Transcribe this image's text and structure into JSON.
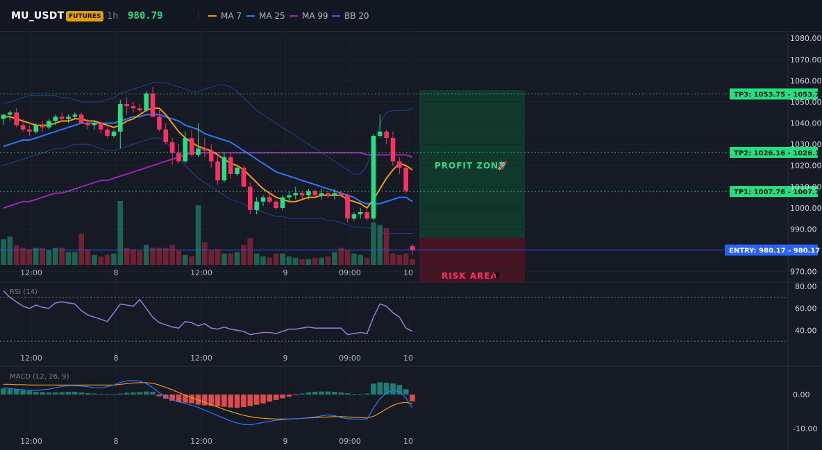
{
  "header": {
    "symbol": "MU_USDT",
    "badge": "FUTURES",
    "interval": "1h",
    "price": "980.79",
    "indicators": [
      {
        "label": "MA 7",
        "color": "#f39c12"
      },
      {
        "label": "MA 25",
        "color": "#2979ff"
      },
      {
        "label": "MA 99",
        "color": "#9c27b0"
      },
      {
        "label": "BB 20",
        "color": "#2962ff"
      }
    ]
  },
  "colors": {
    "up": "#26de81",
    "down": "#ff2e63",
    "background": "#161a25",
    "profit_zone": "#0f3d2e",
    "risk_zone": "#4a1524"
  },
  "price_axis": [
    "1080.00",
    "1070.00",
    "1060.00",
    "1050.00",
    "1040.00",
    "1030.00",
    "1020.00",
    "1010.00",
    "1000.00",
    "990.00",
    "970.00"
  ],
  "time_axis": [
    "12:00",
    "8",
    "12:00",
    "9",
    "09:00",
    "10"
  ],
  "levels": [
    {
      "label": "TP3: 1053.75",
      "value": "1053.75",
      "kind": "tp"
    },
    {
      "label": "TP2: 1026.16",
      "value": "1026.16",
      "kind": "tp"
    },
    {
      "label": "TP1: 1007.76",
      "value": "1007.76",
      "kind": "tp"
    },
    {
      "label": "ENTRY: 980.17",
      "value": "980.17",
      "kind": "entry"
    }
  ],
  "zones": {
    "profit": {
      "label": "PROFIT ZONE",
      "icon": "rocket-icon"
    },
    "risk": {
      "label": "RISK AREA",
      "icon": "shield-icon"
    }
  },
  "rsi": {
    "title": "RSI (14)",
    "axis": [
      "80.00",
      "60.00",
      "40.00"
    ],
    "upper": 70,
    "lower": 30,
    "ymin": 25,
    "ymax": 82
  },
  "macd": {
    "title": "MACD (12, 26, 9)",
    "axis": [
      "0.00",
      "-10.00"
    ]
  },
  "chart_data": {
    "type": "candlestick",
    "ylim": [
      965,
      1083
    ],
    "candles": [
      [
        1042,
        1044,
        1039,
        1044
      ],
      [
        1044,
        1046,
        1041,
        1045
      ],
      [
        1045,
        1047,
        1038,
        1039
      ],
      [
        1039,
        1042,
        1036,
        1037
      ],
      [
        1037,
        1039,
        1034,
        1036
      ],
      [
        1036,
        1040,
        1035,
        1039
      ],
      [
        1039,
        1041,
        1036,
        1038
      ],
      [
        1038,
        1042,
        1037,
        1041
      ],
      [
        1041,
        1044,
        1039,
        1043
      ],
      [
        1043,
        1045,
        1041,
        1042
      ],
      [
        1042,
        1044,
        1040,
        1043
      ],
      [
        1043,
        1045,
        1042,
        1044
      ],
      [
        1044,
        1045,
        1040,
        1040
      ],
      [
        1040,
        1042,
        1037,
        1039
      ],
      [
        1039,
        1041,
        1037,
        1040
      ],
      [
        1040,
        1041,
        1035,
        1037
      ],
      [
        1037,
        1039,
        1033,
        1034
      ],
      [
        1034,
        1037,
        1033,
        1036
      ],
      [
        1036,
        1051,
        1028,
        1049
      ],
      [
        1049,
        1052,
        1044,
        1048
      ],
      [
        1048,
        1050,
        1045,
        1047
      ],
      [
        1047,
        1049,
        1045,
        1046
      ],
      [
        1046,
        1055,
        1045,
        1054
      ],
      [
        1054,
        1057,
        1043,
        1043
      ],
      [
        1043,
        1046,
        1036,
        1037
      ],
      [
        1037,
        1040,
        1030,
        1031
      ],
      [
        1031,
        1033,
        1020,
        1026
      ],
      [
        1026,
        1030,
        1021,
        1022
      ],
      [
        1022,
        1036,
        1021,
        1033
      ],
      [
        1033,
        1037,
        1024,
        1025
      ],
      [
        1025,
        1040,
        1024,
        1028
      ],
      [
        1028,
        1033,
        1024,
        1027
      ],
      [
        1027,
        1030,
        1019,
        1022
      ],
      [
        1022,
        1025,
        1011,
        1013
      ],
      [
        1013,
        1026,
        1012,
        1024
      ],
      [
        1024,
        1026,
        1014,
        1016
      ],
      [
        1016,
        1020,
        1015,
        1019
      ],
      [
        1019,
        1020,
        1010,
        1010
      ],
      [
        1010,
        1012,
        997,
        999
      ],
      [
        999,
        1005,
        997,
        1003
      ],
      [
        1003,
        1006,
        1001,
        1005
      ],
      [
        1005,
        1008,
        1002,
        1003
      ],
      [
        1003,
        1004,
        999,
        1000
      ],
      [
        1000,
        1006,
        999,
        1005
      ],
      [
        1005,
        1008,
        1003,
        1006
      ],
      [
        1006,
        1010,
        1004,
        1007
      ],
      [
        1007,
        1008,
        1004,
        1006
      ],
      [
        1006,
        1009,
        1004,
        1008
      ],
      [
        1008,
        1009,
        1005,
        1006
      ],
      [
        1006,
        1009,
        1004,
        1007
      ],
      [
        1007,
        1008,
        1005,
        1006
      ],
      [
        1006,
        1009,
        1004,
        1007
      ],
      [
        1007,
        1008,
        1005,
        1006
      ],
      [
        1006,
        1007,
        993,
        995
      ],
      [
        995,
        998,
        994,
        997
      ],
      [
        997,
        1000,
        995,
        998
      ],
      [
        998,
        1000,
        994,
        995
      ],
      [
        995,
        1035,
        994,
        1034
      ],
      [
        1034,
        1044,
        1033,
        1036
      ],
      [
        1036,
        1037,
        1030,
        1033
      ],
      [
        1033,
        1036,
        1020,
        1022
      ],
      [
        1022,
        1024,
        1016,
        1019
      ],
      [
        1019,
        1020,
        1007,
        1008
      ],
      [
        982,
        983,
        978,
        980
      ]
    ],
    "volume": [
      18,
      20,
      14,
      12,
      11,
      12,
      12,
      10,
      12,
      12,
      9,
      9,
      22,
      11,
      7,
      6,
      7,
      8,
      45,
      12,
      11,
      10,
      14,
      12,
      12,
      12,
      14,
      10,
      7,
      6,
      42,
      16,
      10,
      11,
      8,
      8,
      9,
      14,
      19,
      8,
      6,
      5,
      8,
      8,
      6,
      5,
      4,
      4,
      5,
      5,
      6,
      9,
      12,
      10,
      8,
      7,
      5,
      30,
      28,
      26,
      8,
      7,
      8,
      4
    ],
    "ma7": [
      1043,
      1043,
      1042,
      1041,
      1040,
      1039,
      1039,
      1039,
      1040,
      1041,
      1041,
      1042,
      1042,
      1041,
      1041,
      1040,
      1039,
      1038,
      1039,
      1041,
      1042,
      1044,
      1046,
      1047,
      1047,
      1044,
      1040,
      1036,
      1033,
      1031,
      1029,
      1028,
      1027,
      1025,
      1023,
      1021,
      1020,
      1018,
      1015,
      1012,
      1009,
      1007,
      1005,
      1004,
      1003,
      1003,
      1004,
      1005,
      1005,
      1006,
      1006,
      1006,
      1006,
      1004,
      1003,
      1002,
      1000,
      1004,
      1009,
      1014,
      1018,
      1021,
      1020,
      1018
    ],
    "ma25": [
      1029,
      1030,
      1031,
      1032,
      1032,
      1033,
      1034,
      1035,
      1036,
      1037,
      1038,
      1039,
      1040,
      1040,
      1040,
      1040,
      1040,
      1040,
      1041,
      1042,
      1043,
      1043,
      1044,
      1044,
      1044,
      1043,
      1042,
      1041,
      1039,
      1038,
      1037,
      1035,
      1034,
      1033,
      1032,
      1031,
      1029,
      1027,
      1025,
      1023,
      1021,
      1019,
      1017,
      1016,
      1015,
      1014,
      1013,
      1012,
      1011,
      1010,
      1009,
      1008,
      1007,
      1006,
      1005,
      1003,
      1002,
      1002,
      1002,
      1003,
      1004,
      1005,
      1005,
      1003
    ],
    "ma99": [
      1000,
      1001,
      1002,
      1003,
      1003,
      1004,
      1005,
      1006,
      1007,
      1007,
      1008,
      1009,
      1010,
      1011,
      1012,
      1013,
      1013,
      1014,
      1015,
      1016,
      1017,
      1018,
      1019,
      1020,
      1021,
      1022,
      1023,
      1024,
      1025,
      1026,
      1026,
      1026,
      1026,
      1026,
      1026,
      1026,
      1026,
      1026,
      1026,
      1026,
      1026,
      1026,
      1026,
      1026,
      1026,
      1026,
      1026,
      1026,
      1026,
      1026,
      1026,
      1026,
      1026,
      1026,
      1026,
      1026,
      1025,
      1025,
      1025,
      1025,
      1025,
      1025,
      1025,
      1024
    ],
    "bb_upper": [
      1049,
      1050,
      1051,
      1052,
      1053,
      1053,
      1053,
      1053,
      1053,
      1052,
      1052,
      1051,
      1050,
      1050,
      1050,
      1050,
      1051,
      1052,
      1054,
      1055,
      1056,
      1057,
      1058,
      1059,
      1059,
      1059,
      1058,
      1057,
      1056,
      1055,
      1055,
      1056,
      1057,
      1058,
      1058,
      1057,
      1055,
      1052,
      1049,
      1046,
      1044,
      1042,
      1040,
      1038,
      1036,
      1034,
      1032,
      1030,
      1028,
      1026,
      1024,
      1022,
      1020,
      1018,
      1016,
      1016,
      1020,
      1030,
      1040,
      1045,
      1046,
      1046,
      1046,
      1047
    ],
    "bb_lower": [
      1020,
      1021,
      1022,
      1023,
      1024,
      1025,
      1026,
      1027,
      1028,
      1028,
      1029,
      1030,
      1030,
      1030,
      1029,
      1028,
      1027,
      1027,
      1028,
      1029,
      1030,
      1031,
      1032,
      1033,
      1033,
      1031,
      1028,
      1024,
      1020,
      1017,
      1014,
      1012,
      1010,
      1008,
      1006,
      1004,
      1003,
      1002,
      1000,
      999,
      998,
      997,
      996,
      996,
      995,
      995,
      995,
      995,
      995,
      995,
      994,
      994,
      993,
      992,
      991,
      991,
      991,
      990,
      989,
      988,
      988,
      988,
      988,
      988
    ],
    "rsi": [
      76,
      70,
      66,
      62,
      60,
      63,
      61,
      60,
      65,
      66,
      65,
      64,
      58,
      54,
      52,
      50,
      48,
      56,
      64,
      63,
      62,
      68,
      60,
      52,
      47,
      45,
      43,
      42,
      48,
      47,
      44,
      46,
      42,
      41,
      43,
      41,
      40,
      39,
      36,
      37,
      38,
      38,
      37,
      39,
      41,
      41,
      42,
      43,
      42,
      42,
      42,
      42,
      42,
      36,
      37,
      38,
      37,
      52,
      64,
      62,
      56,
      52,
      42,
      39
    ],
    "macd_hist": [
      1.8,
      1.7,
      1.5,
      1.2,
      1.0,
      0.8,
      0.7,
      0.6,
      0.6,
      0.7,
      0.8,
      0.8,
      0.6,
      0.4,
      0.3,
      0.2,
      0.1,
      0.0,
      0.3,
      0.5,
      0.6,
      0.7,
      0.9,
      0.8,
      -0.5,
      -1.2,
      -1.8,
      -2.2,
      -2.4,
      -2.6,
      -3.0,
      -3.2,
      -3.3,
      -3.5,
      -3.6,
      -3.8,
      -3.9,
      -3.7,
      -3.4,
      -3.0,
      -2.6,
      -2.1,
      -1.6,
      -1.1,
      -0.6,
      -0.2,
      0.3,
      0.6,
      0.8,
      0.9,
      0.9,
      0.8,
      0.6,
      0.4,
      0.2,
      0.1,
      0.3,
      3.2,
      3.6,
      3.5,
      3.3,
      2.8,
      1.6,
      -2.0
    ],
    "macd_line": [
      2,
      1.8,
      1.6,
      1.4,
      1.2,
      1.2,
      1.4,
      1.6,
      2.0,
      2.4,
      2.6,
      2.6,
      2.5,
      2.3,
      2.0,
      2.0,
      2.3,
      2.8,
      3.6,
      4.0,
      4.1,
      4.0,
      3.2,
      2.0,
      0.5,
      -0.8,
      -1.6,
      -2.2,
      -2.6,
      -3.2,
      -3.8,
      -4.6,
      -5.4,
      -6.2,
      -7.0,
      -7.8,
      -8.4,
      -8.8,
      -8.9,
      -8.6,
      -8.2,
      -7.9,
      -7.6,
      -7.4,
      -7.2,
      -7.1,
      -7.0,
      -6.8,
      -6.6,
      -6.3,
      -6.0,
      -6.2,
      -6.8,
      -7.1,
      -7.2,
      -7.3,
      -7.3,
      -4.0,
      -1.2,
      0.5,
      1.2,
      0.8,
      -1.0,
      -4.0
    ],
    "macd_signal": [
      3.0,
      3.0,
      2.9,
      2.9,
      2.8,
      2.8,
      2.8,
      2.8,
      2.8,
      2.8,
      2.8,
      2.8,
      2.8,
      2.8,
      2.8,
      2.8,
      2.8,
      2.8,
      3.0,
      3.2,
      3.4,
      3.5,
      3.5,
      3.3,
      2.8,
      2.1,
      1.4,
      0.6,
      -0.2,
      -0.9,
      -1.6,
      -2.3,
      -3.0,
      -3.7,
      -4.4,
      -5.0,
      -5.6,
      -6.1,
      -6.5,
      -6.8,
      -7.0,
      -7.1,
      -7.2,
      -7.2,
      -7.2,
      -7.1,
      -7.0,
      -6.9,
      -6.8,
      -6.7,
      -6.6,
      -6.5,
      -6.5,
      -6.6,
      -6.7,
      -6.8,
      -6.9,
      -6.4,
      -5.4,
      -4.2,
      -3.2,
      -2.5,
      -2.3,
      -2.7
    ]
  }
}
